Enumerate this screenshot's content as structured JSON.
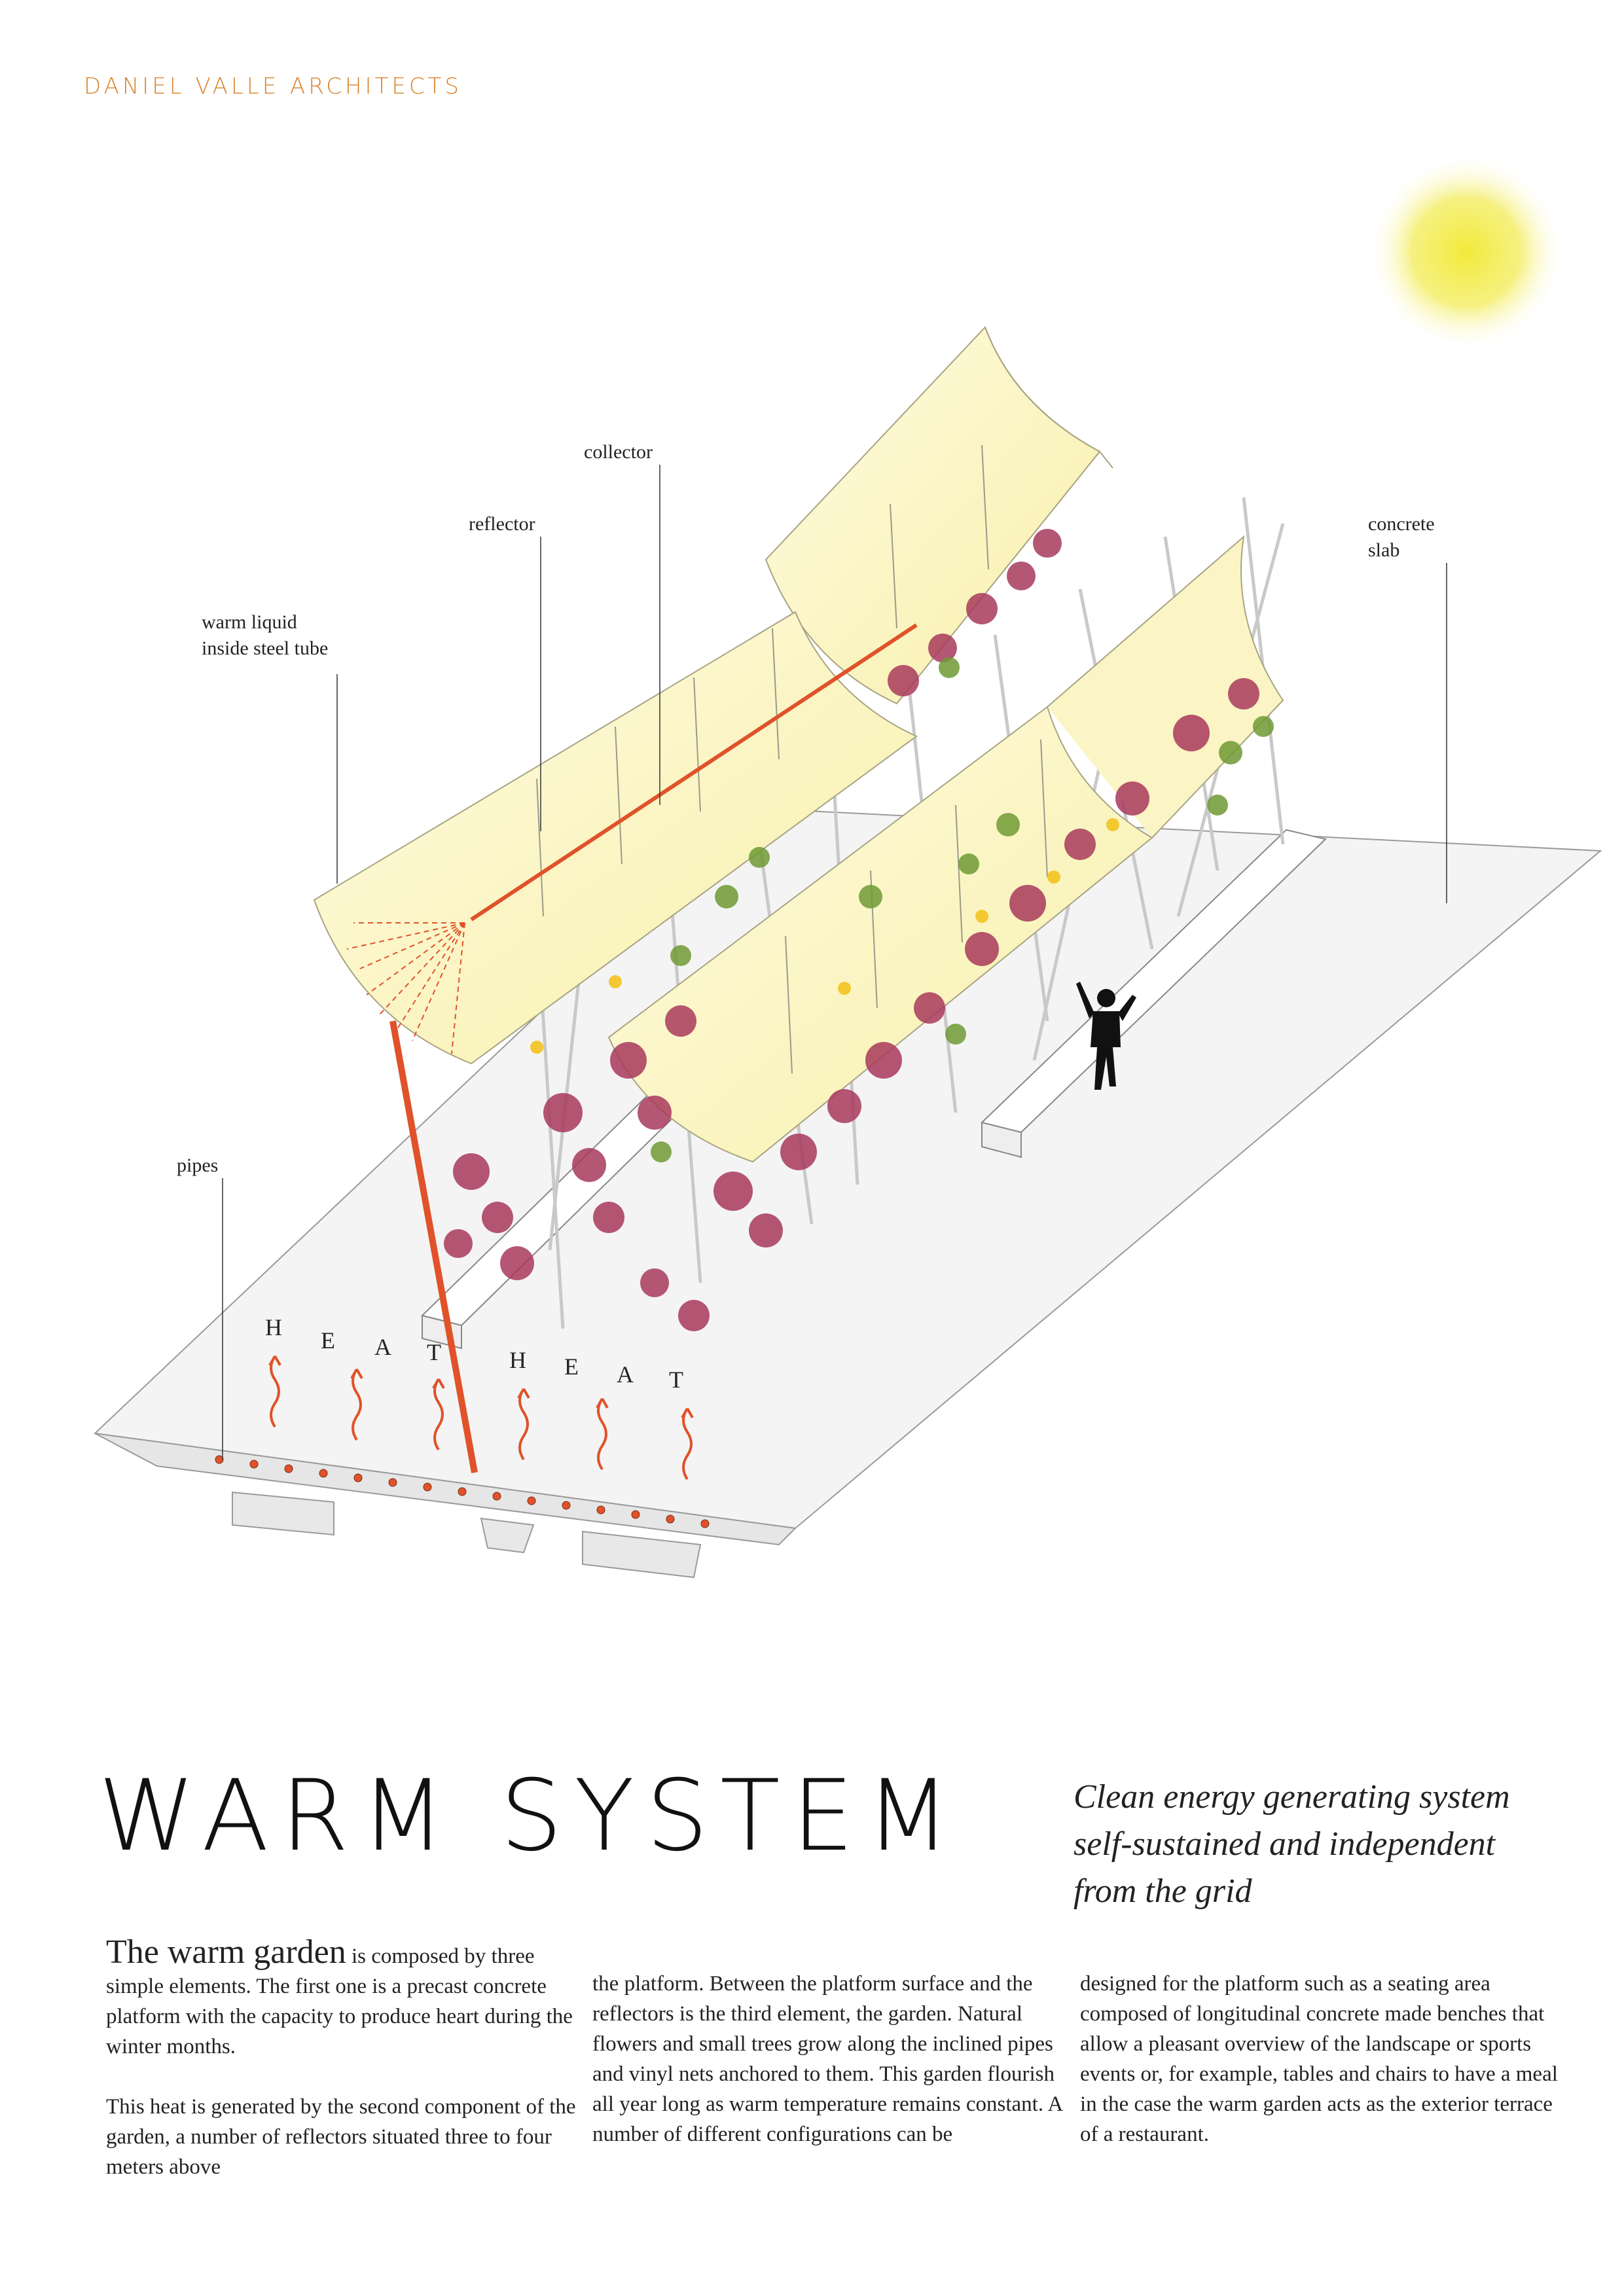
{
  "brand": "DANIEL VALLE ARCHITECTS",
  "diagram": {
    "labels": {
      "collector": "collector",
      "reflector": "reflector",
      "warm_liquid_line1": "warm liquid",
      "warm_liquid_line2": "inside steel tube",
      "concrete_line1": "concrete",
      "concrete_line2": "slab",
      "pipes": "pipes"
    },
    "heat_letters_1": [
      "H",
      "E",
      "A",
      "T"
    ],
    "heat_letters_2": [
      "H",
      "E",
      "A",
      "T"
    ]
  },
  "colors": {
    "accent": "#e0522a",
    "brand": "#d9822b",
    "reflector_fill": "#fbf6c6",
    "sun": "#f2ea3a",
    "plant_flower": "#a83a5c",
    "plant_leaf": "#6f9a34"
  },
  "title": "WARM  SYSTEM",
  "tagline": {
    "line1": "Clean energy generating system",
    "line2": "self-sustained and independent",
    "line3": "from the grid"
  },
  "text": {
    "lead": "The warm garden",
    "p1_rest": " is composed by three simple elements. The first one is a precast concrete platform with the capacity to produce heart during the winter months.",
    "p2": "This heat is generated by the second component of the garden, a number of reflectors situated three to four meters above",
    "col2": "the platform. Between the platform surface and the reflectors is the third element, the garden. Natural flowers and small trees grow along the inclined pipes and vinyl nets anchored to them. This garden flourish all year long as warm temperature remains constant. A number of different configurations can be",
    "col3": "designed for the platform such as a seating area composed of longitudinal concrete made benches that allow a pleasant overview of the landscape or sports events or, for example, tables and chairs to have a meal in the case the warm garden acts as the exterior terrace of a restaurant."
  }
}
